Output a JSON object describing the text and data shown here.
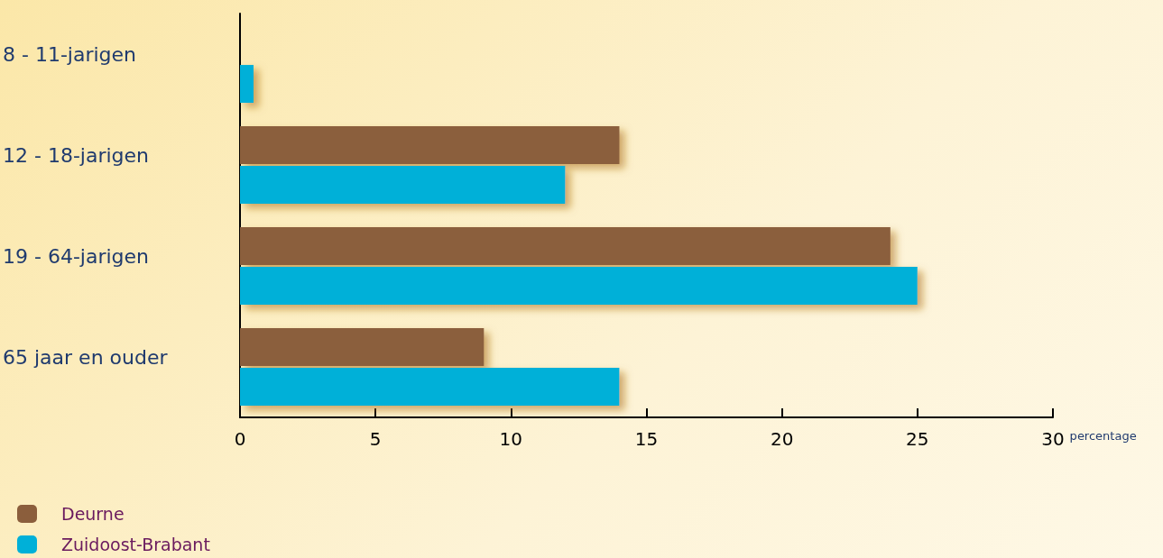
{
  "chart_data": {
    "type": "bar",
    "orientation": "horizontal",
    "xlabel": "percentage",
    "categories": [
      "8 - 11-jarigen",
      "12 - 18-jarigen",
      "19 - 64-jarigen",
      "65 jaar en ouder"
    ],
    "series": [
      {
        "name": "Deurne",
        "color": "#8b5e3c",
        "values": [
          null,
          14,
          24,
          9
        ]
      },
      {
        "name": "Zuidoost-Brabant",
        "color": "#00b0d8",
        "values": [
          0.5,
          12,
          25,
          14
        ]
      }
    ],
    "xlim": [
      0,
      30
    ],
    "xticks": [
      0,
      5,
      10,
      15,
      20,
      25,
      30
    ],
    "grid": false,
    "legend": "bottom left"
  }
}
